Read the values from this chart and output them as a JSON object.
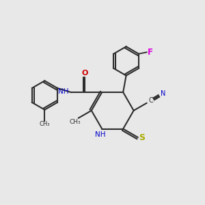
{
  "background_color": "#e8e8e8",
  "bond_color": "#2d2d2d",
  "O_color": "#cc0000",
  "N_color": "#0000cc",
  "S_color": "#aaaa00",
  "F_color": "#dd00dd",
  "C_color": "#2d2d2d",
  "figsize": [
    3.0,
    3.0
  ],
  "dpi": 100,
  "xlim": [
    0,
    10
  ],
  "ylim": [
    0,
    10
  ]
}
